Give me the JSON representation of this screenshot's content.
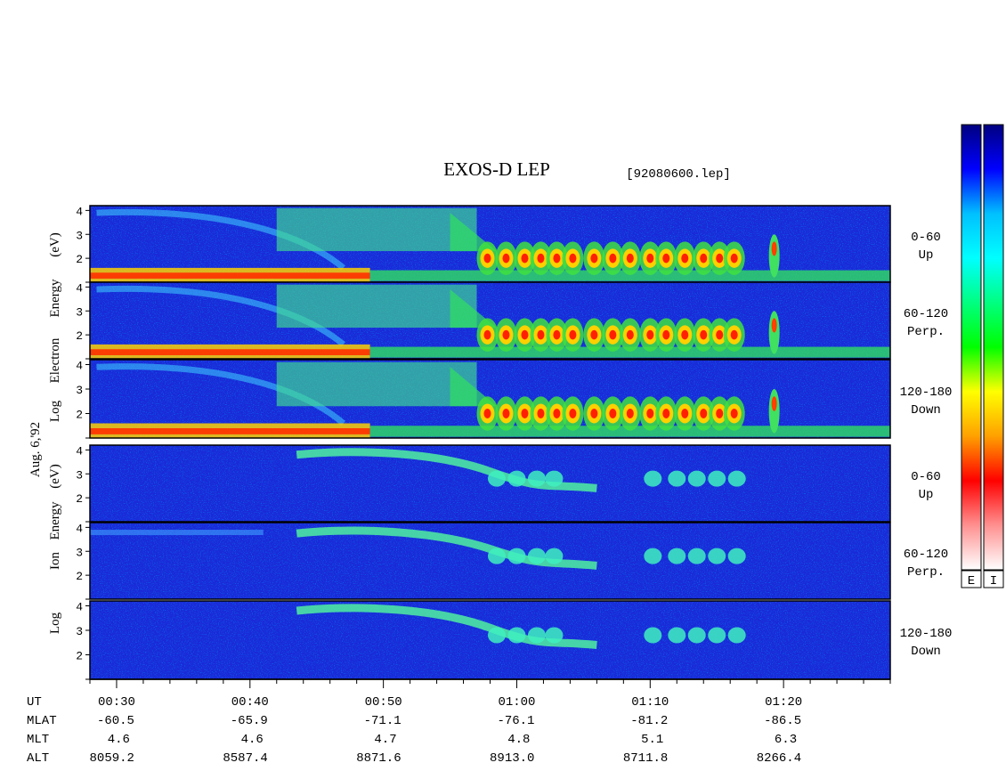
{
  "chart_data": {
    "type": "heatmap",
    "title": "EXOS-D LEP",
    "file_label": "[92080600.lep]",
    "date_label": "Aug. 6,'92",
    "panel_groups": [
      {
        "species": "Electron",
        "ylabel_parts": [
          "Log",
          "Electron",
          "Energy",
          "(eV)"
        ],
        "panels": [
          {
            "pitch": "0-60",
            "direction": "Up"
          },
          {
            "pitch": "60-120",
            "direction": "Perp."
          },
          {
            "pitch": "120-180",
            "direction": "Down"
          }
        ]
      },
      {
        "species": "Ion",
        "ylabel_parts": [
          "Log",
          "Ion",
          "Energy",
          "(eV)"
        ],
        "panels": [
          {
            "pitch": "0-60",
            "direction": "Up"
          },
          {
            "pitch": "60-120",
            "direction": "Perp."
          },
          {
            "pitch": "120-180",
            "direction": "Down"
          }
        ]
      }
    ],
    "y_ticks": [
      "2",
      "3",
      "4"
    ],
    "ylim": [
      1,
      4.2
    ],
    "x_range_minutes": [
      28,
      88
    ],
    "ephemeris": {
      "row_labels": [
        "UT",
        "MLAT",
        "MLT",
        "ALT"
      ],
      "columns": [
        {
          "UT": "00:30",
          "MLAT": "-60.5",
          "MLT": "4.6",
          "ALT": "8059.2"
        },
        {
          "UT": "00:40",
          "MLAT": "-65.9",
          "MLT": "4.6",
          "ALT": "8587.4"
        },
        {
          "UT": "00:50",
          "MLAT": "-71.1",
          "MLT": "4.7",
          "ALT": "8871.6"
        },
        {
          "UT": "01:00",
          "MLAT": "-76.1",
          "MLT": "4.8",
          "ALT": "8913.0"
        },
        {
          "UT": "01:10",
          "MLAT": "-81.2",
          "MLT": "5.1",
          "ALT": "8711.8"
        },
        {
          "UT": "01:20",
          "MLAT": "-86.5",
          "MLT": "6.3",
          "ALT": "8266.4"
        }
      ]
    },
    "colorbars": [
      {
        "label": "E"
      },
      {
        "label": "I"
      }
    ],
    "colormap": [
      "#000080",
      "#0000ff",
      "#00c0ff",
      "#00ffff",
      "#00ff80",
      "#00ff00",
      "#ffff00",
      "#ffa000",
      "#ff0000",
      "#ff9090",
      "#ffffff"
    ]
  }
}
